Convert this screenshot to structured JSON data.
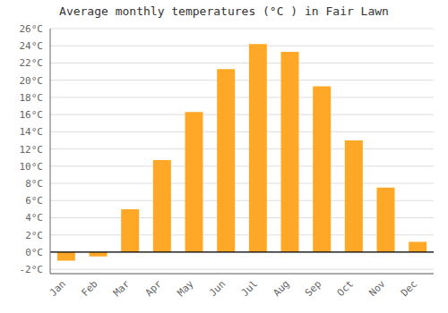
{
  "chart_data": {
    "type": "bar",
    "title": "Average monthly temperatures (°C ) in Fair Lawn",
    "categories": [
      "Jan",
      "Feb",
      "Mar",
      "Apr",
      "May",
      "Jun",
      "Jul",
      "Aug",
      "Sep",
      "Oct",
      "Nov",
      "Dec"
    ],
    "values": [
      -1.0,
      -0.5,
      5.0,
      10.7,
      16.3,
      21.3,
      24.2,
      23.3,
      19.3,
      13.0,
      7.5,
      1.2
    ],
    "color": "#FFA726",
    "ylim": [
      -2.5,
      26
    ],
    "yticks": [
      {
        "value": -2,
        "label": "-2°C"
      },
      {
        "value": 0,
        "label": "0°C"
      },
      {
        "value": 2,
        "label": "2°C"
      },
      {
        "value": 4,
        "label": "4°C"
      },
      {
        "value": 6,
        "label": "6°C"
      },
      {
        "value": 8,
        "label": "8°C"
      },
      {
        "value": 10,
        "label": "10°C"
      },
      {
        "value": 12,
        "label": "12°C"
      },
      {
        "value": 14,
        "label": "14°C"
      },
      {
        "value": 16,
        "label": "16°C"
      },
      {
        "value": 18,
        "label": "18°C"
      },
      {
        "value": 20,
        "label": "20°C"
      },
      {
        "value": 22,
        "label": "22°C"
      },
      {
        "value": 24,
        "label": "24°C"
      },
      {
        "value": 26,
        "label": "26°C"
      }
    ],
    "grid": true
  }
}
